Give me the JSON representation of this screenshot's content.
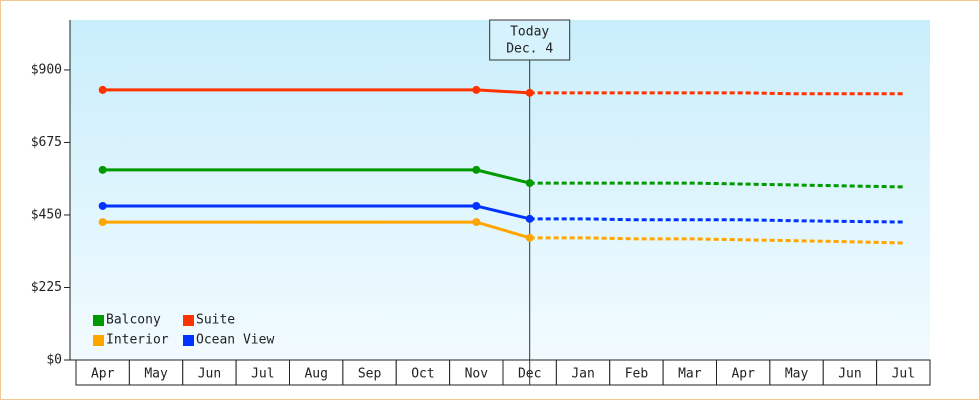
{
  "chart_data": {
    "type": "line",
    "categories": [
      "Apr",
      "May",
      "Jun",
      "Jul",
      "Aug",
      "Sep",
      "Oct",
      "Nov",
      "Dec",
      "Jan",
      "Feb",
      "Mar",
      "Apr",
      "May",
      "Jun",
      "Jul"
    ],
    "series": [
      {
        "name": "Balcony",
        "color": "#009900",
        "values": [
          590,
          590,
          590,
          590,
          590,
          590,
          590,
          590,
          549,
          549,
          549,
          549,
          546,
          543,
          540,
          537
        ]
      },
      {
        "name": "Suite",
        "color": "#ff3300",
        "values": [
          838,
          838,
          838,
          838,
          838,
          838,
          838,
          838,
          829,
          829,
          829,
          829,
          829,
          826,
          826,
          826
        ]
      },
      {
        "name": "Interior",
        "color": "#ffa500",
        "values": [
          428,
          428,
          428,
          428,
          428,
          428,
          428,
          428,
          379,
          379,
          376,
          376,
          373,
          370,
          367,
          363
        ]
      },
      {
        "name": "Ocean View",
        "color": "#0033ff",
        "values": [
          478,
          478,
          478,
          478,
          478,
          478,
          478,
          478,
          438,
          438,
          435,
          435,
          435,
          432,
          430,
          428
        ]
      }
    ],
    "ylim": [
      0,
      1055
    ],
    "yticks": [
      {
        "value": 0,
        "label": "$0"
      },
      {
        "value": 225,
        "label": "$225"
      },
      {
        "value": 450,
        "label": "$450"
      },
      {
        "value": 675,
        "label": "$675"
      },
      {
        "value": 900,
        "label": "$900"
      }
    ],
    "annotation": {
      "label": "Today",
      "date": "Dec. 4",
      "category": "Dec"
    }
  }
}
